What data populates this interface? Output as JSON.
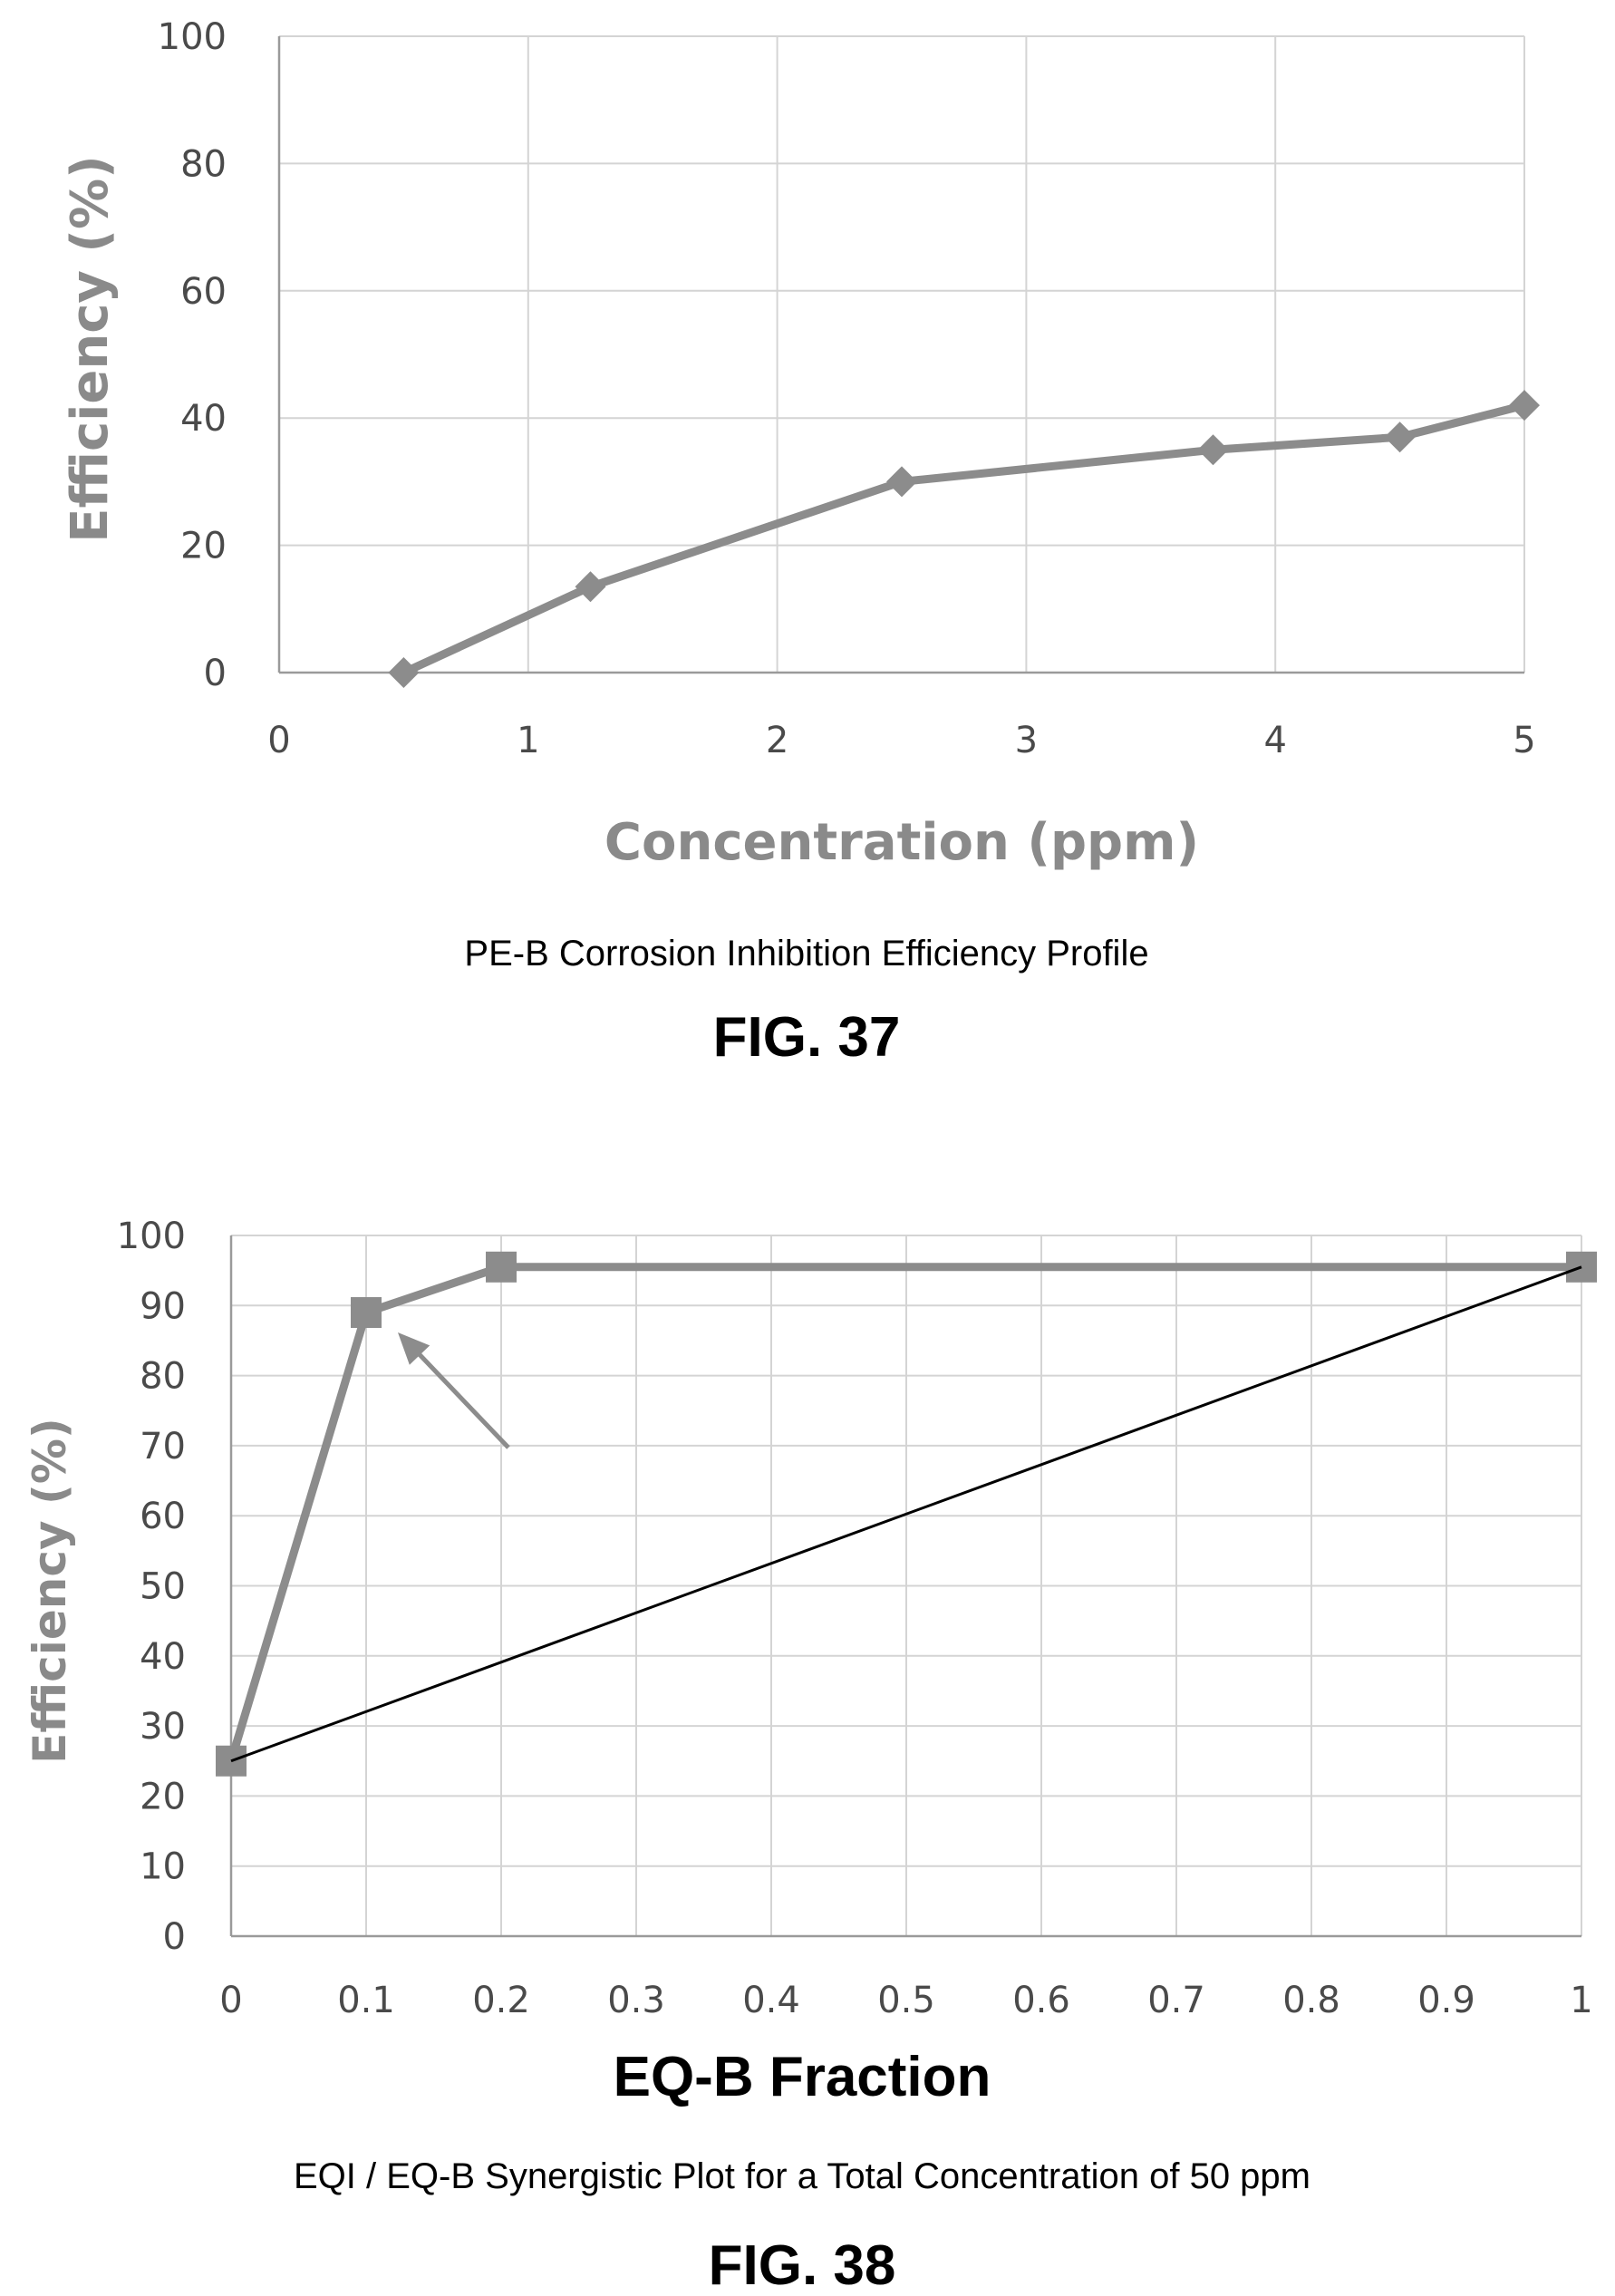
{
  "chart_data": [
    {
      "type": "line",
      "xlabel": "Concentration (ppm)",
      "ylabel": "Efficiency (%)",
      "caption": "PE-B Corrosion Inhibition Efficiency Profile",
      "figure_label": "FIG. 37",
      "xlim": [
        0,
        5
      ],
      "ylim": [
        0,
        100
      ],
      "x_ticks": [
        "0",
        "1",
        "2",
        "3",
        "4",
        "5"
      ],
      "y_ticks": [
        "0",
        "20",
        "40",
        "60",
        "80",
        "100"
      ],
      "grid": true,
      "marker": "diamond",
      "series_color": "#8c8c8c",
      "series": [
        {
          "x": [
            0.5,
            1.25,
            2.5,
            3.75,
            4.5,
            5
          ],
          "y": [
            0,
            13.5,
            30,
            35,
            37,
            42
          ]
        }
      ]
    },
    {
      "type": "line",
      "xlabel": "EQ-B Fraction",
      "ylabel": "Efficiency (%)",
      "caption": "EQI / EQ-B Synergistic Plot for a Total Concentration of 50 ppm",
      "figure_label": "FIG. 38",
      "xlim": [
        0,
        1
      ],
      "ylim": [
        0,
        100
      ],
      "x_ticks": [
        "0",
        "0.1",
        "0.2",
        "0.3",
        "0.4",
        "0.5",
        "0.6",
        "0.7",
        "0.8",
        "0.9",
        "1"
      ],
      "y_ticks": [
        "0",
        "10",
        "20",
        "30",
        "40",
        "50",
        "60",
        "70",
        "80",
        "90",
        "100"
      ],
      "grid": true,
      "marker": "square",
      "series_color": "#8c8c8c",
      "reference_line_color": "#000000",
      "series": [
        {
          "x": [
            0,
            0.1,
            0.2,
            1
          ],
          "y": [
            25,
            89,
            95.5,
            95.5
          ]
        },
        {
          "x": [
            0,
            1
          ],
          "y": [
            25,
            95.5
          ]
        }
      ],
      "annotation": {
        "type": "arrow",
        "points_to": [
          0.1,
          89
        ]
      }
    }
  ]
}
